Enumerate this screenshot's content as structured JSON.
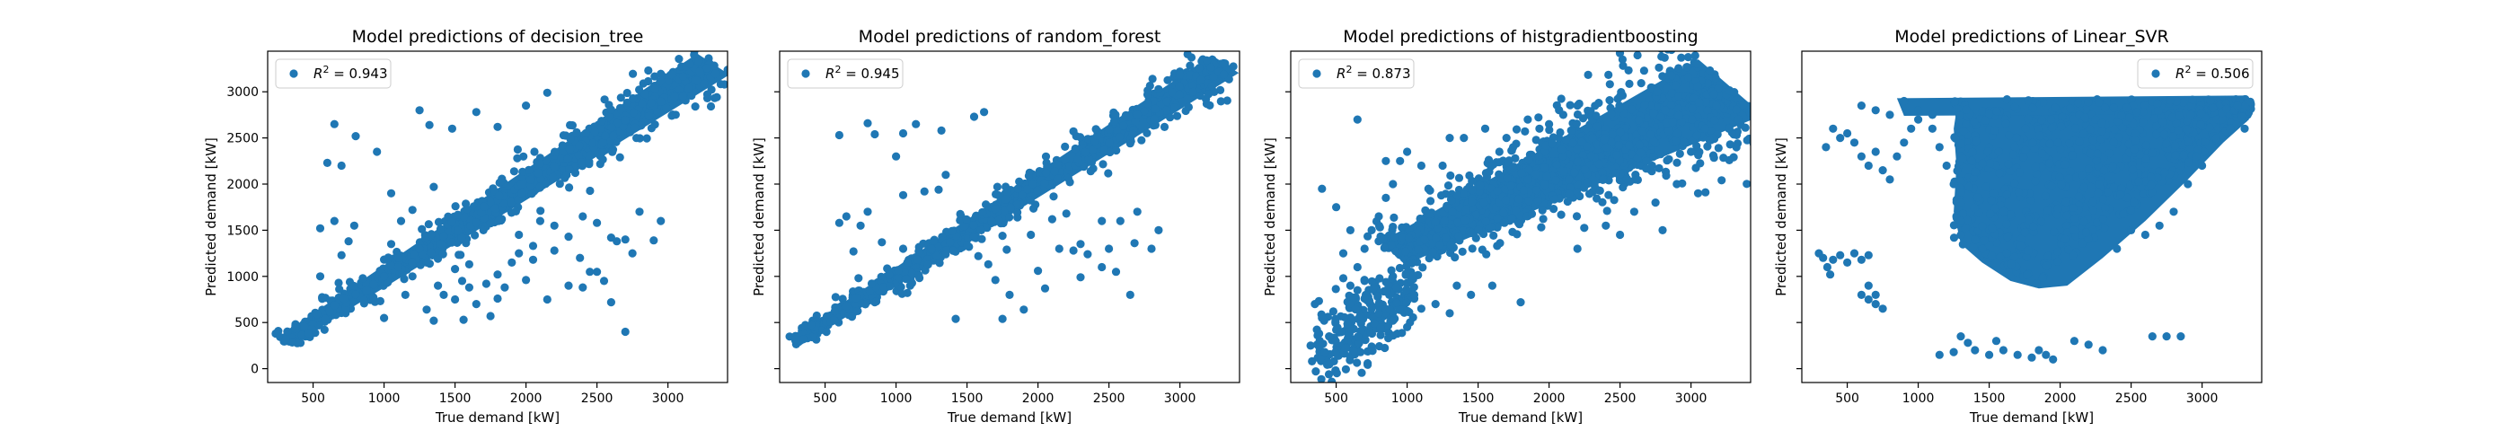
{
  "chart_data": [
    {
      "type": "scatter",
      "title": "Model predictions of decision_tree",
      "xlabel": "True demand [kW]",
      "ylabel": "Predicted demand [kW]",
      "legend": {
        "placement": "top-left",
        "label_prefix": "R",
        "label_sup": "2",
        "label_suffix": " = 0.943"
      },
      "xlim": [
        180,
        3420
      ],
      "ylim": [
        -150,
        3440
      ],
      "xticks": [
        500,
        1000,
        1500,
        2000,
        2500,
        3000
      ],
      "yticks": [
        0,
        500,
        1000,
        1500,
        2000,
        2500,
        3000
      ],
      "show_y_tick_labels": true,
      "color": "#1f77b4",
      "grid": false,
      "dense_band": [
        [
          300,
          300
        ],
        [
          3320,
          3300
        ]
      ],
      "band_width": 180,
      "points": [
        [
          650,
          2650
        ],
        [
          800,
          2520
        ],
        [
          600,
          2230
        ],
        [
          700,
          2200
        ],
        [
          950,
          2350
        ],
        [
          1250,
          2800
        ],
        [
          1320,
          2640
        ],
        [
          1480,
          2600
        ],
        [
          1650,
          2780
        ],
        [
          550,
          1520
        ],
        [
          650,
          1600
        ],
        [
          790,
          1550
        ],
        [
          750,
          1380
        ],
        [
          700,
          1230
        ],
        [
          550,
          1000
        ],
        [
          680,
          930
        ],
        [
          1050,
          1900
        ],
        [
          1120,
          1600
        ],
        [
          1200,
          1720
        ],
        [
          1350,
          1970
        ],
        [
          1050,
          1350
        ],
        [
          1100,
          1200
        ],
        [
          1250,
          1300
        ],
        [
          1400,
          1350
        ],
        [
          1300,
          1150
        ],
        [
          1500,
          1080
        ],
        [
          1550,
          950
        ],
        [
          1380,
          900
        ],
        [
          1420,
          800
        ],
        [
          1500,
          750
        ],
        [
          1600,
          880
        ],
        [
          1650,
          700
        ],
        [
          1720,
          920
        ],
        [
          1800,
          1020
        ],
        [
          1800,
          760
        ],
        [
          1850,
          880
        ],
        [
          1900,
          1150
        ],
        [
          2000,
          960
        ],
        [
          2150,
          750
        ],
        [
          2050,
          1330
        ],
        [
          2200,
          1280
        ],
        [
          2300,
          1430
        ],
        [
          2380,
          1200
        ],
        [
          2450,
          1050
        ],
        [
          2500,
          1580
        ],
        [
          2600,
          1420
        ],
        [
          2640,
          1380
        ],
        [
          2700,
          1400
        ],
        [
          2750,
          1250
        ],
        [
          2300,
          900
        ],
        [
          2400,
          880
        ],
        [
          2500,
          1050
        ],
        [
          2550,
          950
        ],
        [
          2600,
          720
        ],
        [
          2700,
          400
        ],
        [
          2900,
          1390
        ],
        [
          2950,
          1600
        ],
        [
          2000,
          2850
        ],
        [
          2150,
          2990
        ],
        [
          1800,
          2620
        ],
        [
          1000,
          1000
        ],
        [
          1600,
          1130
        ],
        [
          2100,
          1600
        ],
        [
          1700,
          1500
        ],
        [
          1950,
          1450
        ],
        [
          1350,
          520
        ],
        [
          1560,
          530
        ],
        [
          1750,
          570
        ],
        [
          1950,
          1250
        ],
        [
          2200,
          1550
        ],
        [
          850,
          980
        ],
        [
          1150,
          800
        ],
        [
          1000,
          550
        ],
        [
          1300,
          640
        ],
        [
          2050,
          1180
        ],
        [
          2800,
          1700
        ],
        [
          2400,
          1650
        ],
        [
          1200,
          1000
        ]
      ]
    },
    {
      "type": "scatter",
      "title": "Model predictions of random_forest",
      "xlabel": "True demand [kW]",
      "ylabel": "Predicted demand [kW]",
      "legend": {
        "placement": "top-left",
        "label_prefix": "R",
        "label_sup": "2",
        "label_suffix": " = 0.945"
      },
      "xlim": [
        180,
        3420
      ],
      "ylim": [
        -150,
        3440
      ],
      "xticks": [
        500,
        1000,
        1500,
        2000,
        2500,
        3000
      ],
      "yticks": [
        0,
        500,
        1000,
        1500,
        2000,
        2500,
        3000
      ],
      "show_y_tick_labels": false,
      "color": "#1f77b4",
      "grid": false,
      "dense_band": [
        [
          300,
          300
        ],
        [
          3320,
          3300
        ]
      ],
      "band_width": 150,
      "points": [
        [
          600,
          2530
        ],
        [
          800,
          2660
        ],
        [
          850,
          2540
        ],
        [
          1000,
          2300
        ],
        [
          1050,
          2550
        ],
        [
          1140,
          2650
        ],
        [
          1320,
          2580
        ],
        [
          1550,
          2730
        ],
        [
          1620,
          2780
        ],
        [
          600,
          1580
        ],
        [
          650,
          1650
        ],
        [
          800,
          1700
        ],
        [
          750,
          1550
        ],
        [
          700,
          1270
        ],
        [
          900,
          1370
        ],
        [
          1050,
          1300
        ],
        [
          1150,
          1180
        ],
        [
          950,
          1020
        ],
        [
          1080,
          820
        ],
        [
          1200,
          1920
        ],
        [
          1300,
          1940
        ],
        [
          1350,
          2100
        ],
        [
          1380,
          1370
        ],
        [
          1500,
          1340
        ],
        [
          1580,
          1220
        ],
        [
          1650,
          1130
        ],
        [
          1780,
          1290
        ],
        [
          1700,
          960
        ],
        [
          1800,
          800
        ],
        [
          1900,
          640
        ],
        [
          1750,
          1440
        ],
        [
          2000,
          1060
        ],
        [
          2050,
          870
        ],
        [
          2150,
          1300
        ],
        [
          2250,
          1280
        ],
        [
          2300,
          1350
        ],
        [
          2350,
          1240
        ],
        [
          2450,
          1100
        ],
        [
          2500,
          1300
        ],
        [
          2550,
          1050
        ],
        [
          2650,
          800
        ],
        [
          2800,
          1300
        ],
        [
          2850,
          1500
        ],
        [
          2300,
          990
        ],
        [
          2450,
          1600
        ],
        [
          2580,
          1600
        ],
        [
          2680,
          1360
        ],
        [
          1420,
          540
        ],
        [
          1750,
          540
        ],
        [
          1950,
          1450
        ],
        [
          2200,
          1680
        ],
        [
          1250,
          1300
        ],
        [
          1050,
          1880
        ],
        [
          2700,
          1700
        ],
        [
          2100,
          1620
        ],
        [
          1600,
          1500
        ]
      ]
    },
    {
      "type": "scatter",
      "title": "Model predictions of histgradientboosting",
      "xlabel": "True demand [kW]",
      "ylabel": "Predicted demand [kW]",
      "legend": {
        "placement": "top-left",
        "label_prefix": "R",
        "label_sup": "2",
        "label_suffix": " = 0.873"
      },
      "xlim": [
        180,
        3420
      ],
      "ylim": [
        -150,
        3440
      ],
      "xticks": [
        500,
        1000,
        1500,
        2000,
        2500,
        3000
      ],
      "yticks": [
        0,
        500,
        1000,
        1500,
        2000,
        2500,
        3000
      ],
      "show_y_tick_labels": false,
      "color": "#1f77b4",
      "grid": false,
      "dense_band": [
        [
          900,
          1250
        ],
        [
          3280,
          3050
        ]
      ],
      "band_width": 420,
      "points": [
        [
          350,
          700
        ],
        [
          400,
          550
        ],
        [
          320,
          250
        ],
        [
          380,
          380
        ],
        [
          450,
          350
        ],
        [
          420,
          180
        ],
        [
          500,
          420
        ],
        [
          330,
          80
        ],
        [
          480,
          620
        ],
        [
          550,
          980
        ],
        [
          600,
          900
        ],
        [
          650,
          850
        ],
        [
          700,
          760
        ],
        [
          750,
          650
        ],
        [
          800,
          600
        ],
        [
          900,
          520
        ],
        [
          1000,
          450
        ],
        [
          1100,
          650
        ],
        [
          1200,
          700
        ],
        [
          1300,
          600
        ],
        [
          1450,
          800
        ],
        [
          1600,
          900
        ],
        [
          1800,
          720
        ],
        [
          700,
          1300
        ],
        [
          750,
          1500
        ],
        [
          800,
          1650
        ],
        [
          850,
          1850
        ],
        [
          900,
          2000
        ],
        [
          950,
          2250
        ],
        [
          1000,
          2350
        ],
        [
          1100,
          2200
        ],
        [
          1150,
          1950
        ],
        [
          1250,
          2200
        ],
        [
          1400,
          2500
        ],
        [
          1550,
          2600
        ],
        [
          1700,
          2500
        ],
        [
          1850,
          2700
        ],
        [
          2000,
          2650
        ],
        [
          2100,
          2750
        ],
        [
          2200,
          2850
        ],
        [
          2350,
          2880
        ],
        [
          2500,
          2950
        ],
        [
          400,
          1950
        ],
        [
          500,
          1750
        ],
        [
          600,
          1500
        ],
        [
          650,
          2700
        ],
        [
          850,
          2250
        ],
        [
          1300,
          2500
        ],
        [
          1650,
          2350
        ],
        [
          1850,
          2050
        ],
        [
          2500,
          1450
        ],
        [
          2600,
          1700
        ],
        [
          2750,
          1800
        ],
        [
          2900,
          2000
        ],
        [
          3000,
          2350
        ],
        [
          3100,
          2600
        ],
        [
          2800,
          1500
        ],
        [
          3050,
          1900
        ],
        [
          550,
          1250
        ],
        [
          650,
          1100
        ],
        [
          700,
          950
        ],
        [
          900,
          1000
        ],
        [
          1050,
          800
        ],
        [
          1350,
          900
        ],
        [
          2200,
          1300
        ],
        [
          2400,
          1550
        ]
      ]
    },
    {
      "type": "scatter",
      "title": "Model predictions of Linear_SVR",
      "xlabel": "True demand [kW]",
      "ylabel": "Predicted demand [kW]",
      "legend": {
        "placement": "top-right",
        "label_prefix": "R",
        "label_sup": "2",
        "label_suffix": " = 0.506"
      },
      "xlim": [
        180,
        3420
      ],
      "ylim": [
        -150,
        3440
      ],
      "xticks": [
        500,
        1000,
        1500,
        2000,
        2500,
        3000
      ],
      "yticks": [
        0,
        500,
        1000,
        1500,
        2000,
        2500,
        3000
      ],
      "show_y_tick_labels": false,
      "color": "#1f77b4",
      "grid": false,
      "points": [
        [
          300,
          1250
        ],
        [
          330,
          1200
        ],
        [
          360,
          1100
        ],
        [
          400,
          1180
        ],
        [
          450,
          1230
        ],
        [
          500,
          1150
        ],
        [
          550,
          1250
        ],
        [
          380,
          1020
        ],
        [
          600,
          1180
        ],
        [
          650,
          1230
        ],
        [
          600,
          800
        ],
        [
          650,
          750
        ],
        [
          700,
          700
        ],
        [
          650,
          900
        ],
        [
          750,
          650
        ],
        [
          700,
          800
        ],
        [
          350,
          2400
        ],
        [
          400,
          2600
        ],
        [
          450,
          2500
        ],
        [
          500,
          2550
        ],
        [
          550,
          2450
        ],
        [
          600,
          2300
        ],
        [
          650,
          2200
        ],
        [
          700,
          2350
        ],
        [
          750,
          2150
        ],
        [
          800,
          2050
        ],
        [
          850,
          2300
        ],
        [
          900,
          2450
        ],
        [
          950,
          2600
        ],
        [
          1000,
          2700
        ],
        [
          600,
          2850
        ],
        [
          700,
          2800
        ],
        [
          800,
          2750
        ],
        [
          900,
          2900
        ],
        [
          1000,
          2800
        ],
        [
          1100,
          2600
        ],
        [
          1150,
          2400
        ],
        [
          1200,
          2200
        ],
        [
          1250,
          2000
        ],
        [
          1100,
          2750
        ],
        [
          1300,
          1800
        ],
        [
          1300,
          1600
        ],
        [
          1400,
          1400
        ],
        [
          1450,
          1300
        ],
        [
          1300,
          350
        ],
        [
          1350,
          280
        ],
        [
          1400,
          200
        ],
        [
          1500,
          150
        ],
        [
          1550,
          300
        ],
        [
          1600,
          200
        ],
        [
          1700,
          150
        ],
        [
          1800,
          120
        ],
        [
          1850,
          200
        ],
        [
          1900,
          150
        ],
        [
          1950,
          100
        ],
        [
          2100,
          300
        ],
        [
          2200,
          260
        ],
        [
          2300,
          200
        ],
        [
          2650,
          350
        ],
        [
          2750,
          350
        ],
        [
          2850,
          350
        ],
        [
          1150,
          150
        ],
        [
          1250,
          180
        ],
        [
          2500,
          1500
        ],
        [
          2600,
          1450
        ],
        [
          2700,
          1550
        ],
        [
          2800,
          1700
        ],
        [
          2900,
          2000
        ],
        [
          3000,
          2200
        ],
        [
          3100,
          2500
        ],
        [
          3200,
          2600
        ],
        [
          2400,
          1300
        ],
        [
          3300,
          2600
        ],
        [
          3250,
          2850
        ]
      ]
    }
  ]
}
